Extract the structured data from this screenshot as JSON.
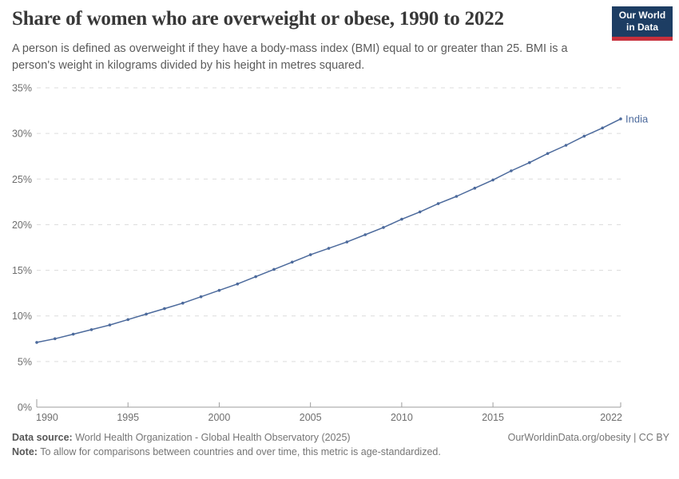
{
  "header": {
    "title": "Share of women who are overweight or obese, 1990 to 2022",
    "subtitle": "A person is defined as overweight if they have a body-mass index (BMI) equal to or greater than 25. BMI is a person's weight in kilograms divided by his height in metres squared.",
    "logo": {
      "line1": "Our World",
      "line2": "in Data",
      "bg_color": "#1d3d63",
      "accent_color": "#c7303c"
    }
  },
  "chart_data": {
    "type": "line",
    "title": "Share of women who are overweight or obese, 1990 to 2022",
    "xlabel": "",
    "ylabel": "",
    "xlim": [
      1990,
      2022
    ],
    "ylim": [
      0,
      35
    ],
    "x_ticks": [
      1990,
      1995,
      2000,
      2005,
      2010,
      2015,
      2022
    ],
    "y_ticks": [
      0,
      5,
      10,
      15,
      20,
      25,
      30,
      35
    ],
    "y_tick_labels": [
      "0%",
      "5%",
      "10%",
      "15%",
      "20%",
      "25%",
      "30%",
      "35%"
    ],
    "grid": "horizontal-dashed",
    "legend_position": "end-of-line",
    "colors": {
      "line": "#4c6a9c",
      "grid": "#dcdcdc",
      "axis": "#9e9e9e",
      "tick_text": "#6e6e6e"
    },
    "series": [
      {
        "name": "India",
        "color": "#4c6a9c",
        "x": [
          1990,
          1991,
          1992,
          1993,
          1994,
          1995,
          1996,
          1997,
          1998,
          1999,
          2000,
          2001,
          2002,
          2003,
          2004,
          2005,
          2006,
          2007,
          2008,
          2009,
          2010,
          2011,
          2012,
          2013,
          2014,
          2015,
          2016,
          2017,
          2018,
          2019,
          2020,
          2021,
          2022
        ],
        "values": [
          7.1,
          7.5,
          8.0,
          8.5,
          9.0,
          9.6,
          10.2,
          10.8,
          11.4,
          12.1,
          12.8,
          13.5,
          14.3,
          15.1,
          15.9,
          16.7,
          17.4,
          18.1,
          18.9,
          19.7,
          20.6,
          21.4,
          22.3,
          23.1,
          24.0,
          24.9,
          25.9,
          26.8,
          27.8,
          28.7,
          29.7,
          30.6,
          31.6
        ]
      }
    ]
  },
  "footer": {
    "datasource_label": "Data source:",
    "datasource_text": " World Health Organization - Global Health Observatory (2025)",
    "rights": "OurWorldinData.org/obesity | CC BY",
    "note_label": "Note:",
    "note_text": " To allow for comparisons between countries and over time, this metric is age-standardized."
  }
}
